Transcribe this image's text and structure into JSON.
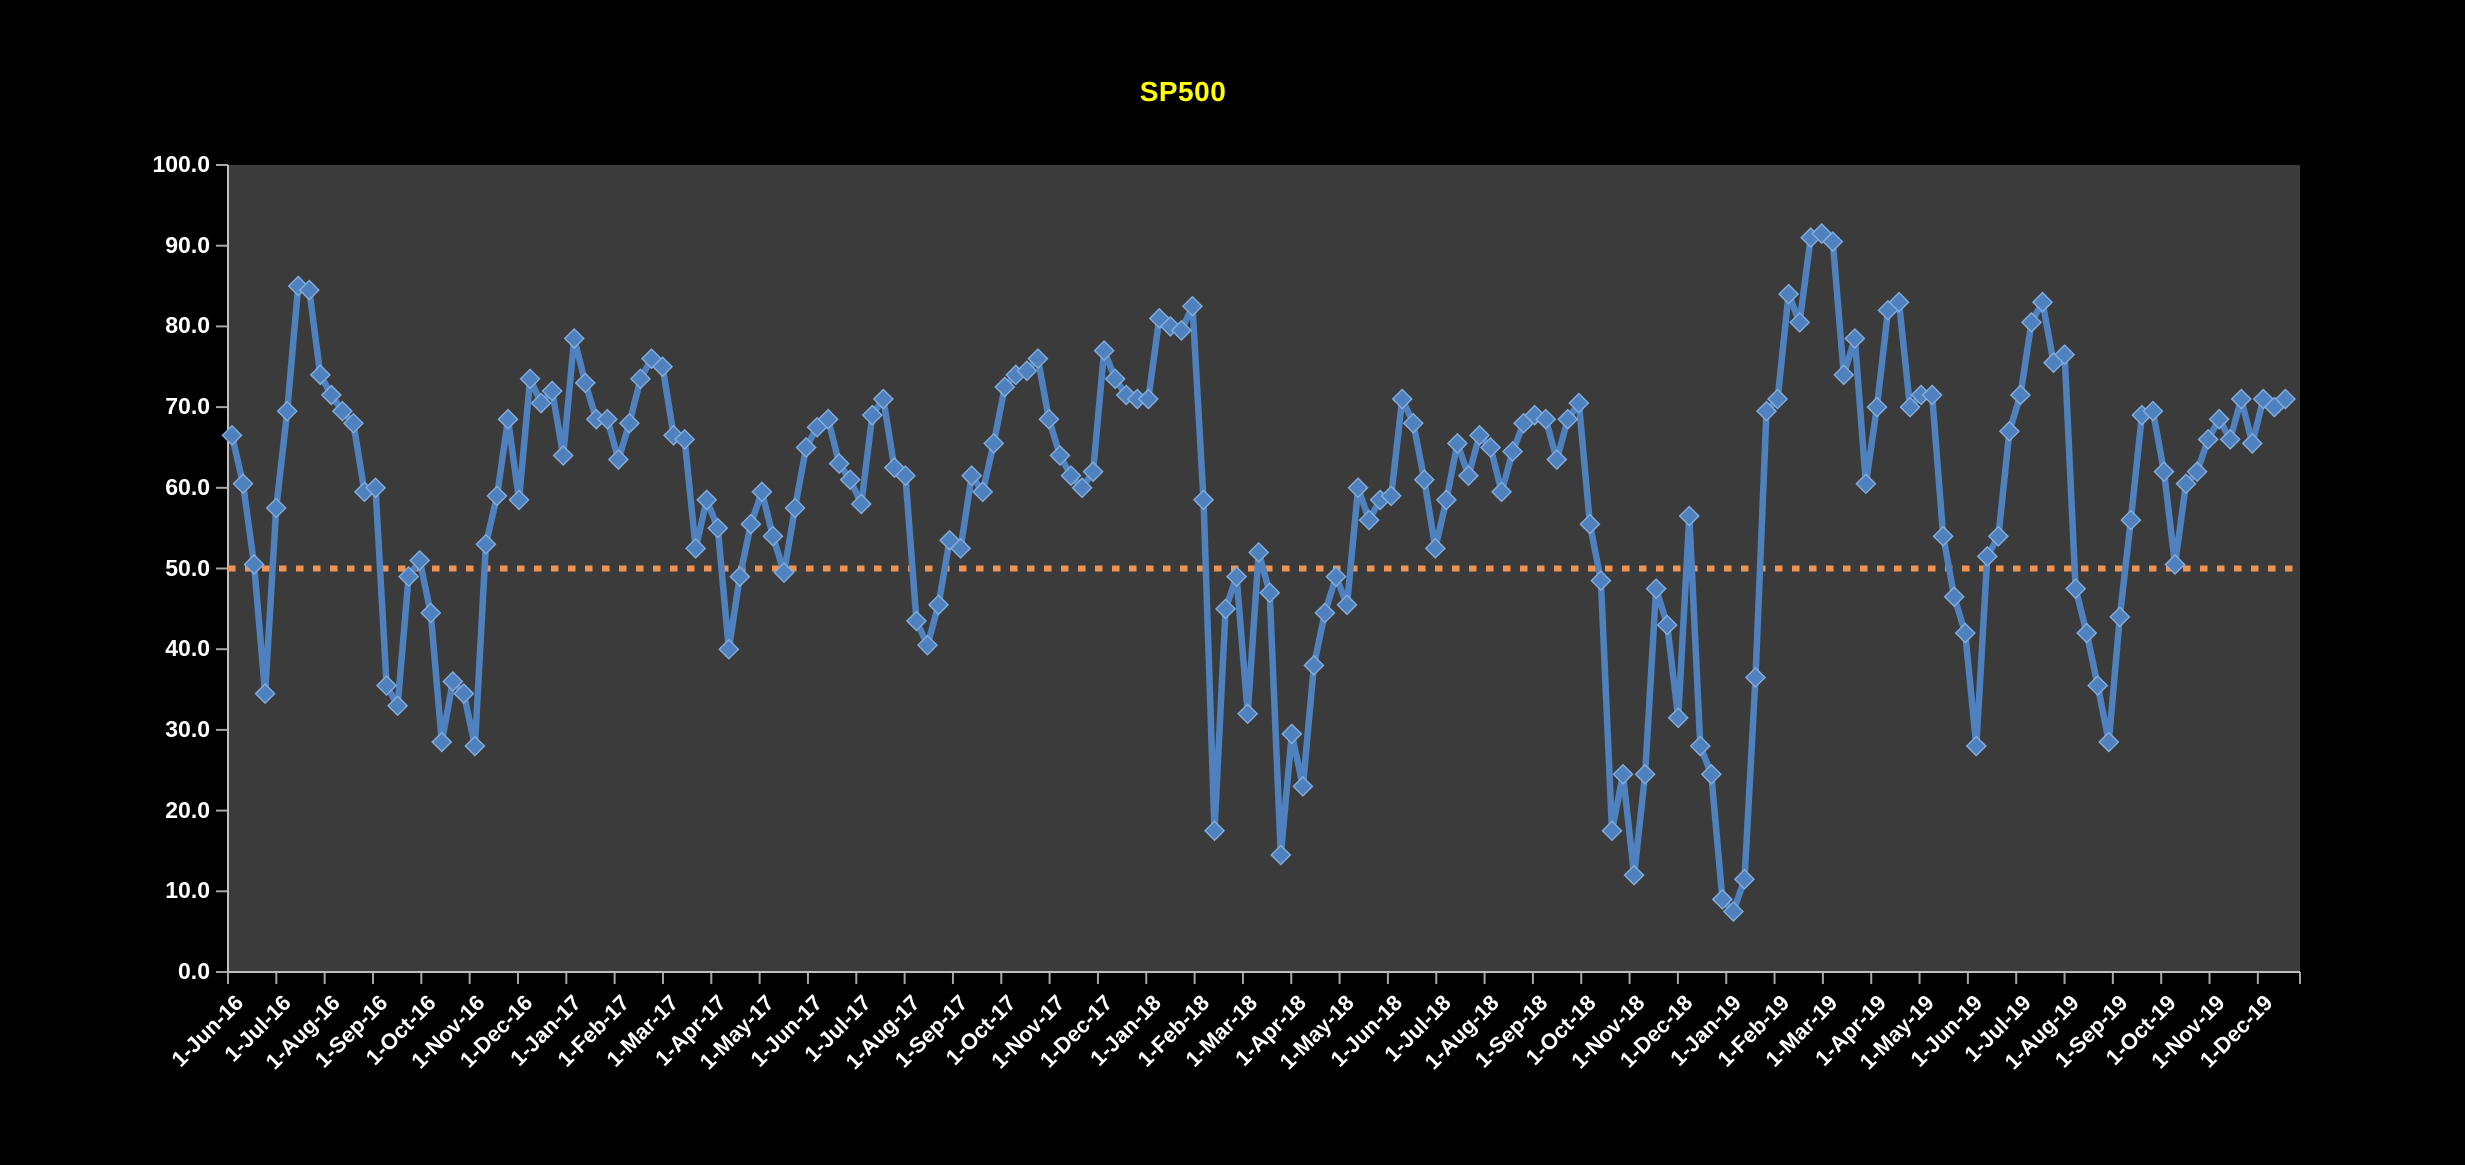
{
  "window": {
    "background_color": "#000000"
  },
  "chart": {
    "title": "SP500",
    "title_color": "#FFFF00",
    "plot_background": "#3B3B3B",
    "axis_line_color": "#BFBFBF",
    "tick_color": "#A6A6A6",
    "label_color": "#FFFFFF",
    "series_line_color": "#4E81BD",
    "marker_fill_color": "#4E81BD",
    "marker_edge_color": "#84ADDC",
    "reference_line_color": "#ED9455"
  },
  "chart_data": {
    "type": "line",
    "title": "SP500",
    "x_unit": "weeks starting 1-Jun-16",
    "x_tick_labels": [
      "1-Jun-16",
      "1-Jul-16",
      "1-Aug-16",
      "1-Sep-16",
      "1-Oct-16",
      "1-Nov-16",
      "1-Dec-16",
      "1-Jan-17",
      "1-Feb-17",
      "1-Mar-17",
      "1-Apr-17",
      "1-May-17",
      "1-Jun-17",
      "1-Jul-17",
      "1-Aug-17",
      "1-Sep-17",
      "1-Oct-17",
      "1-Nov-17",
      "1-Dec-17",
      "1-Jan-18",
      "1-Feb-18",
      "1-Mar-18",
      "1-Apr-18",
      "1-May-18",
      "1-Jun-18",
      "1-Jul-18",
      "1-Aug-18",
      "1-Sep-18",
      "1-Oct-18",
      "1-Nov-18",
      "1-Dec-18",
      "1-Jan-19",
      "1-Feb-19",
      "1-Mar-19",
      "1-Apr-19",
      "1-May-19",
      "1-Jun-19",
      "1-Jul-19",
      "1-Aug-19",
      "1-Sep-19",
      "1-Oct-19",
      "1-Nov-19",
      "1-Dec-19"
    ],
    "y_tick_labels": [
      "0.0",
      "10.0",
      "20.0",
      "30.0",
      "40.0",
      "50.0",
      "60.0",
      "70.0",
      "80.0",
      "90.0",
      "100.0"
    ],
    "ylim": [
      0,
      100
    ],
    "grid": "off",
    "legend": "none",
    "marker": "diamond",
    "reference_line": {
      "value": 50.0,
      "style": "square-dotted"
    },
    "series": [
      {
        "name": "SP500",
        "frequency": "weekly",
        "values": [
          66.5,
          60.5,
          50.5,
          34.5,
          57.5,
          69.5,
          85,
          84.5,
          74,
          71.5,
          69.5,
          68,
          59.5,
          60,
          35.5,
          33,
          49,
          51,
          44.5,
          28.5,
          36,
          34.5,
          28,
          53,
          59,
          68.5,
          58.5,
          73.5,
          70.5,
          72,
          64,
          78.5,
          73,
          68.5,
          68.5,
          63.5,
          68,
          73.5,
          76,
          75,
          66.5,
          66,
          52.5,
          58.5,
          55,
          40,
          49,
          55.5,
          59.5,
          54,
          49.5,
          57.5,
          65,
          67.5,
          68.5,
          63,
          61,
          58,
          69,
          71,
          62.5,
          61.5,
          43.5,
          40.5,
          45.5,
          53.5,
          52.5,
          61.5,
          59.5,
          65.5,
          72.5,
          74,
          74.5,
          76,
          68.5,
          64,
          61.5,
          60,
          62,
          77,
          73.5,
          71.5,
          71,
          71,
          81,
          80,
          79.5,
          82.5,
          58.5,
          17.5,
          45,
          49,
          32,
          52,
          47,
          14.5,
          29.5,
          23,
          38,
          44.5,
          49,
          45.5,
          60,
          56,
          58.5,
          59,
          71,
          68,
          61,
          52.5,
          58.5,
          65.5,
          61.5,
          66.5,
          65,
          59.5,
          64.5,
          68,
          69,
          68.5,
          63.5,
          68.5,
          70.5,
          55.5,
          48.5,
          17.5,
          24.5,
          12,
          24.5,
          47.5,
          43,
          31.5,
          56.5,
          28,
          24.5,
          9,
          7.5,
          11.5,
          36.5,
          69.5,
          71,
          84,
          80.5,
          91,
          91.5,
          90.5,
          74,
          78.5,
          60.5,
          70,
          82,
          83,
          70,
          71.5,
          71.5,
          54,
          46.5,
          42,
          28,
          51.5,
          54,
          67,
          71.5,
          80.5,
          83,
          75.5,
          76.5,
          47.5,
          42,
          35.5,
          28.5,
          44,
          56,
          69,
          69.5,
          62,
          50.5,
          60.5,
          62,
          66,
          68.5,
          66,
          71,
          65.5,
          71,
          70,
          71
        ]
      }
    ]
  }
}
